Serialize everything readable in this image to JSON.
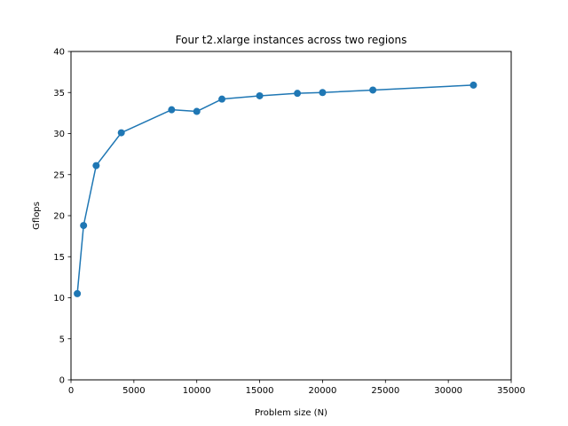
{
  "chart_data": {
    "type": "line",
    "title": "Four t2.xlarge instances across two regions",
    "xlabel": "Problem size (N)",
    "ylabel": "Gflops",
    "xlim": [
      0,
      35000
    ],
    "ylim": [
      0,
      40
    ],
    "x_ticks": [
      0,
      5000,
      10000,
      15000,
      20000,
      25000,
      30000,
      35000
    ],
    "y_ticks": [
      0,
      5,
      10,
      15,
      20,
      25,
      30,
      35,
      40
    ],
    "grid": false,
    "marker": "circle",
    "color": "#1f77b4",
    "series": [
      {
        "x": [
          500,
          1000,
          2000,
          4000,
          8000,
          10000,
          12000,
          15000,
          18000,
          20000,
          24000,
          32000
        ],
        "y": [
          10.5,
          18.8,
          26.1,
          30.1,
          32.9,
          32.7,
          34.2,
          34.6,
          34.9,
          35.0,
          35.3,
          35.9
        ]
      }
    ]
  }
}
